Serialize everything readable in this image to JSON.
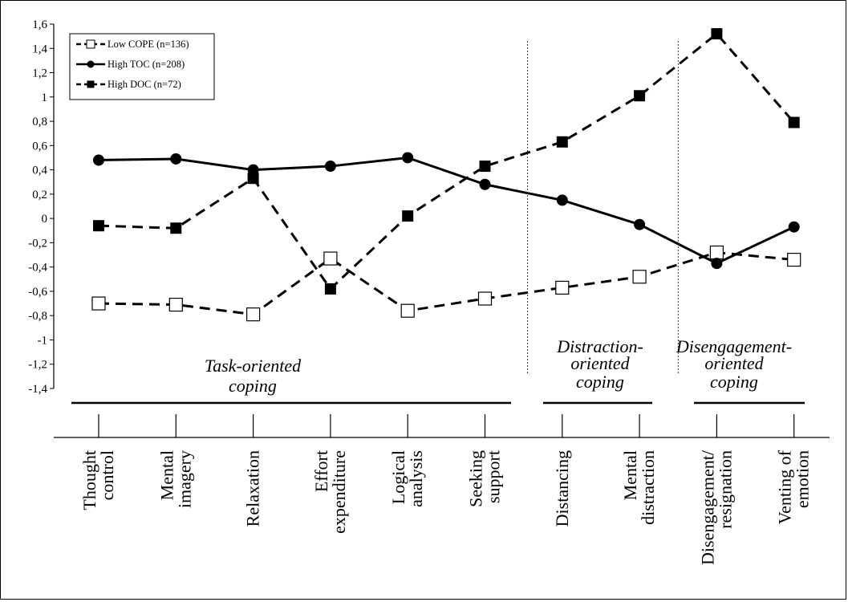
{
  "chart_data": {
    "type": "line",
    "categories": [
      [
        "Thought",
        "control"
      ],
      [
        "Mental",
        "imagery"
      ],
      [
        "Relaxation"
      ],
      [
        "Effort",
        "expenditure"
      ],
      [
        "Logical",
        "analysis"
      ],
      [
        "Seeking",
        "support"
      ],
      [
        "Distancing"
      ],
      [
        "Mental",
        "distraction"
      ],
      [
        "Disengagement/",
        "resignation"
      ],
      [
        "Venting of",
        "emotion"
      ]
    ],
    "series": [
      {
        "name": "Low COPE (n=136)",
        "marker": "open-square",
        "line": "dashed",
        "values": [
          -0.7,
          -0.71,
          -0.79,
          -0.33,
          -0.76,
          -0.66,
          -0.57,
          -0.48,
          -0.28,
          -0.34
        ]
      },
      {
        "name": "High TOC (n=208)",
        "marker": "filled-circle",
        "line": "solid",
        "values": [
          0.48,
          0.49,
          0.4,
          0.43,
          0.5,
          0.28,
          0.15,
          -0.05,
          -0.37,
          -0.07
        ]
      },
      {
        "name": "High DOC (n=72)",
        "marker": "filled-square",
        "line": "dashed",
        "values": [
          -0.06,
          -0.08,
          0.33,
          -0.58,
          0.02,
          0.43,
          0.63,
          1.01,
          1.52,
          0.79
        ]
      }
    ],
    "ylim": [
      -1.4,
      1.6
    ],
    "yticks": [
      "1,6",
      "1,4",
      "1,2",
      "1",
      "0,8",
      "0,6",
      "0,4",
      "0,2",
      "0",
      "-0,2",
      "-0,4",
      "-0,6",
      "-0,8",
      "-1",
      "-1,2",
      "-1,4"
    ],
    "groups": [
      {
        "label": [
          "Task-oriented",
          "coping"
        ],
        "first": 0,
        "last": 5
      },
      {
        "label": [
          "Distraction-",
          "oriented",
          "coping"
        ],
        "first": 6,
        "last": 7
      },
      {
        "label": [
          "Disengagement-",
          "oriented",
          "coping"
        ],
        "first": 8,
        "last": 9
      }
    ],
    "legend_position": "top-left",
    "grid": false,
    "colors": {
      "line": "#000000",
      "background": "#ffffff"
    }
  }
}
